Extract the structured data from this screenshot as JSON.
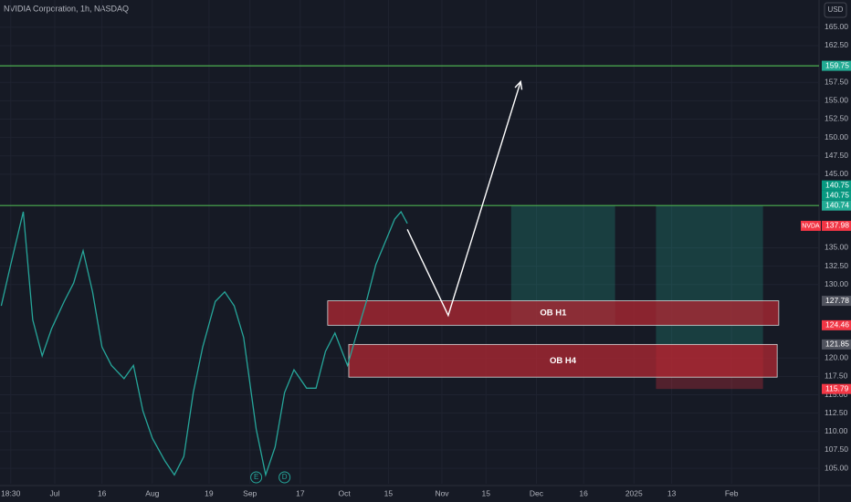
{
  "chart_data": {
    "type": "line",
    "title": "NVIDIA Corporation, 1h, NASDAQ",
    "currency": "USD",
    "x": [
      -17,
      -14,
      -10,
      -7,
      -4,
      -1,
      3,
      6,
      9,
      12,
      15,
      18,
      22,
      25,
      28,
      31,
      35,
      38,
      41,
      44,
      47,
      51,
      54,
      57,
      60,
      64,
      67,
      70,
      73,
      76,
      80,
      83,
      86,
      89,
      93,
      96,
      99,
      102,
      105,
      108,
      110,
      112
    ],
    "series": [
      {
        "name": "NVDA",
        "color": "#26a69a",
        "values": [
          127.1,
          132.7,
          139.9,
          125.2,
          120.3,
          124.0,
          127.7,
          130.2,
          134.6,
          129.0,
          121.5,
          119.0,
          117.2,
          119.0,
          112.8,
          109.1,
          106.0,
          104.1,
          106.6,
          115.3,
          121.5,
          127.7,
          129.0,
          127.1,
          122.8,
          110.3,
          104.1,
          107.9,
          115.3,
          118.4,
          115.9,
          115.9,
          120.9,
          123.4,
          119.0,
          123.4,
          127.7,
          132.7,
          135.8,
          138.9,
          139.9,
          138.3
        ]
      }
    ],
    "xlim": [
      -17.4,
      242.8
    ],
    "ylim": [
      102.9,
      168.7
    ],
    "xticks": [
      {
        "value": -14,
        "label": "18:30"
      },
      {
        "value": 0,
        "label": "Jul"
      },
      {
        "value": 15,
        "label": "16"
      },
      {
        "value": 31,
        "label": "Aug"
      },
      {
        "value": 49,
        "label": "19"
      },
      {
        "value": 62,
        "label": "Sep"
      },
      {
        "value": 78,
        "label": "17"
      },
      {
        "value": 92,
        "label": "Oct"
      },
      {
        "value": 106,
        "label": "15"
      },
      {
        "value": 123,
        "label": "Nov"
      },
      {
        "value": 137,
        "label": "15"
      },
      {
        "value": 153,
        "label": "Dec"
      },
      {
        "value": 168,
        "label": "16"
      },
      {
        "value": 184,
        "label": "2025"
      },
      {
        "value": 196,
        "label": "13"
      },
      {
        "value": 215,
        "label": "Feb"
      }
    ],
    "yticks": [
      {
        "value": 165,
        "label": "165.00"
      },
      {
        "value": 162.5,
        "label": "162.50"
      },
      {
        "value": 157.5,
        "label": "157.50"
      },
      {
        "value": 155,
        "label": "155.00"
      },
      {
        "value": 152.5,
        "label": "152.50"
      },
      {
        "value": 150,
        "label": "150.00"
      },
      {
        "value": 147.5,
        "label": "147.50"
      },
      {
        "value": 145,
        "label": "145.00"
      },
      {
        "value": 135,
        "label": "135.00"
      },
      {
        "value": 132.5,
        "label": "132.50"
      },
      {
        "value": 130,
        "label": "130.00"
      },
      {
        "value": 120,
        "label": "120.00"
      },
      {
        "value": 117.5,
        "label": "117.50"
      },
      {
        "value": 115,
        "label": "115.00"
      },
      {
        "value": 112.5,
        "label": "112.50"
      },
      {
        "value": 110,
        "label": "110.00"
      },
      {
        "value": 107.5,
        "label": "107.50"
      },
      {
        "value": 105,
        "label": "105.00"
      }
    ],
    "grid": true,
    "levels": [
      {
        "value": 159.75,
        "color": "#4caf50"
      },
      {
        "value": 140.74,
        "color": "#4caf50"
      }
    ],
    "zones": [
      {
        "x": [
          145,
          178
        ],
        "y": [
          124.46,
          140.74
        ],
        "color": "rgba(34,171,148,0.25)"
      },
      {
        "x": [
          191,
          225
        ],
        "y": [
          121.85,
          140.74
        ],
        "color": "rgba(34,171,148,0.25)"
      },
      {
        "x": [
          191,
          225
        ],
        "y": [
          115.79,
          121.85
        ],
        "color": "rgba(242,54,69,0.28)"
      },
      {
        "label": "OB H1",
        "x": [
          86.7,
          230
        ],
        "y": [
          124.46,
          127.78
        ],
        "color": "rgba(178,40,51,0.75)"
      },
      {
        "label": "OB H4",
        "x": [
          93.4,
          229.5
        ],
        "y": [
          117.4,
          121.85
        ],
        "color": "rgba(178,40,51,0.75)"
      }
    ],
    "arrow": {
      "x": [
        112,
        125,
        148
      ],
      "y": [
        137.5,
        125.8,
        157.6
      ],
      "color": "#ffffff"
    },
    "price_tags": [
      {
        "value": 159.75,
        "color": "#22ab94"
      },
      {
        "value": 140.74,
        "color": "#22ab94"
      },
      {
        "value": 140.75,
        "color": "#089981"
      },
      {
        "value": 140.75,
        "color": "#089981"
      },
      {
        "name": "NVDA",
        "value": 137.98,
        "color": "#f23645"
      },
      {
        "value": 127.78,
        "color": "#50535e"
      },
      {
        "value": 124.46,
        "color": "#f23645"
      },
      {
        "value": 121.85,
        "color": "#50535e"
      },
      {
        "value": 115.79,
        "color": "#f23645"
      }
    ],
    "events": [
      {
        "label": "E",
        "x": 64
      },
      {
        "label": "D",
        "x": 73
      }
    ]
  }
}
